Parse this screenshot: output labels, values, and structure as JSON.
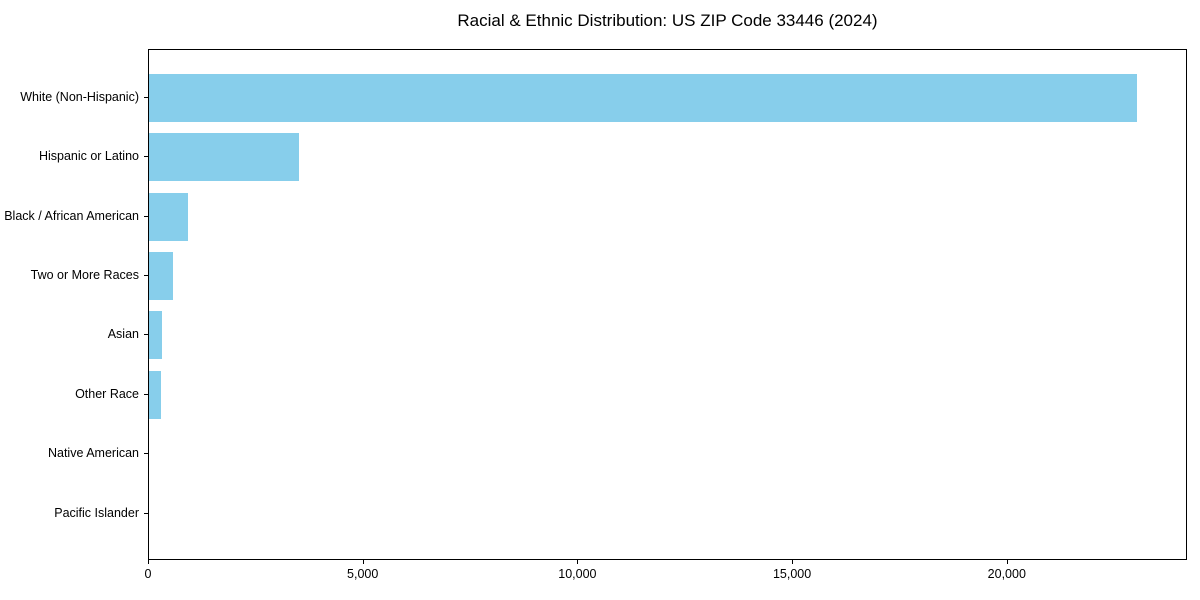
{
  "chart_data": {
    "type": "bar",
    "orientation": "horizontal",
    "title": "Racial & Ethnic Distribution: US ZIP Code 33446 (2024)",
    "categories": [
      "White (Non-Hispanic)",
      "Hispanic or Latino",
      "Black / African American",
      "Two or More Races",
      "Asian",
      "Other Race",
      "Native American",
      "Pacific Islander"
    ],
    "values": [
      23000,
      3500,
      900,
      550,
      300,
      280,
      0,
      0
    ],
    "xlabel": "",
    "ylabel": "",
    "xlim": [
      0,
      24150
    ],
    "xticks": [
      {
        "value": 0,
        "label": "0"
      },
      {
        "value": 5000,
        "label": "5,000"
      },
      {
        "value": 10000,
        "label": "10,000"
      },
      {
        "value": 15000,
        "label": "15,000"
      },
      {
        "value": 20000,
        "label": "20,000"
      }
    ],
    "bar_color": "#87CEEB",
    "grid": false,
    "legend": null,
    "background_color": "#ffffff",
    "axis_color": "#000000"
  }
}
